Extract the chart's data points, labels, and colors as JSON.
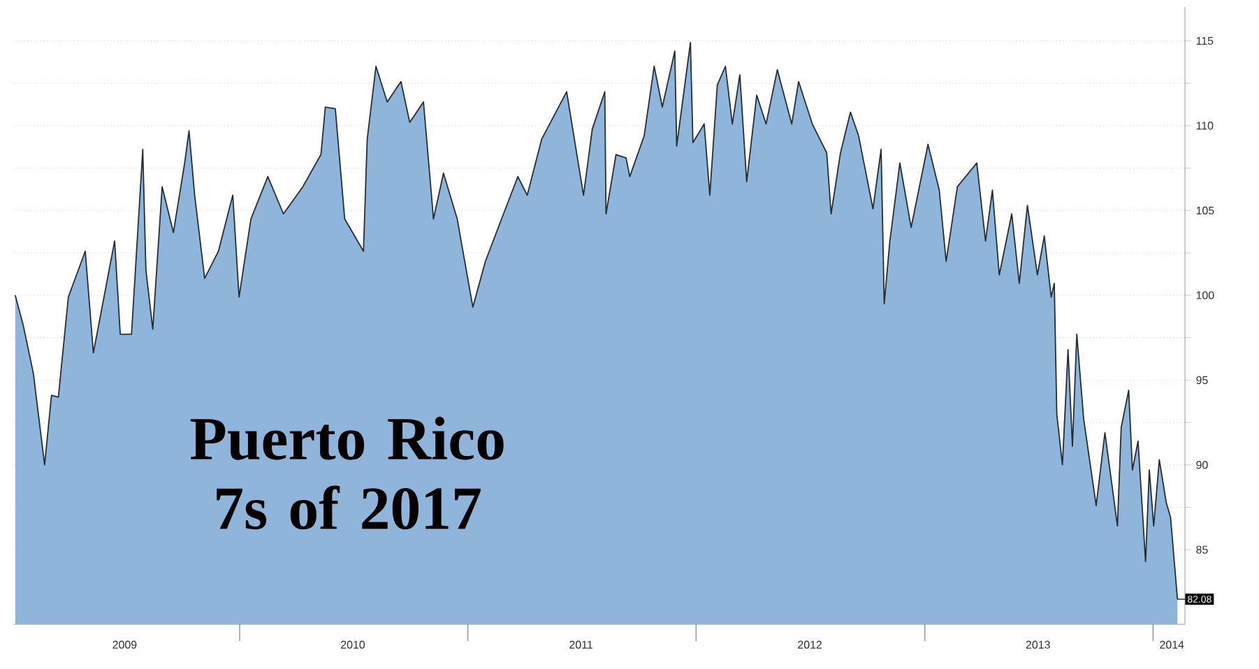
{
  "chart_data": {
    "type": "area",
    "title": "Puerto Rico 7s of 2017",
    "x": [
      "2009-01-07",
      "2009-01-20",
      "2009-02-05",
      "2009-02-23",
      "2009-03-06",
      "2009-03-17",
      "2009-04-02",
      "2009-04-29",
      "2009-05-12",
      "2009-06-15",
      "2009-06-24",
      "2009-07-12",
      "2009-07-30",
      "2009-08-04",
      "2009-08-15",
      "2009-08-30",
      "2009-09-17",
      "2009-10-05",
      "2009-10-12",
      "2009-10-21",
      "2009-11-06",
      "2009-11-28",
      "2009-12-21",
      "2009-12-31",
      "2010-01-19",
      "2010-02-15",
      "2010-03-12",
      "2010-04-12",
      "2010-05-11",
      "2010-05-18",
      "2010-06-03",
      "2010-06-18",
      "2010-07-18",
      "2010-07-24",
      "2010-08-07",
      "2010-08-25",
      "2010-09-16",
      "2010-09-30",
      "2010-10-22",
      "2010-11-07",
      "2010-11-23",
      "2010-12-15",
      "2011-01-09",
      "2011-01-29",
      "2011-02-27",
      "2011-03-22",
      "2011-04-06",
      "2011-04-29",
      "2011-06-08",
      "2011-07-05",
      "2011-07-19",
      "2011-08-08",
      "2011-08-10",
      "2011-08-26",
      "2011-09-11",
      "2011-09-17",
      "2011-10-10",
      "2011-10-26",
      "2011-11-08",
      "2011-11-28",
      "2011-12-01",
      "2011-12-23",
      "2011-12-27",
      "2012-01-14",
      "2012-01-23",
      "2012-02-04",
      "2012-02-17",
      "2012-02-28",
      "2012-03-11",
      "2012-03-22",
      "2012-04-07",
      "2012-04-22",
      "2012-05-10",
      "2012-06-02",
      "2012-06-13",
      "2012-07-05",
      "2012-07-28",
      "2012-08-04",
      "2012-08-19",
      "2012-09-04",
      "2012-09-17",
      "2012-10-10",
      "2012-10-23",
      "2012-10-28",
      "2012-11-06",
      "2012-11-22",
      "2012-12-10",
      "2013-01-06",
      "2013-01-24",
      "2013-02-04",
      "2013-02-22",
      "2013-03-25",
      "2013-04-08",
      "2013-04-19",
      "2013-04-30",
      "2013-05-20",
      "2013-06-01",
      "2013-06-14",
      "2013-06-30",
      "2013-07-11",
      "2013-07-22",
      "2013-07-27",
      "2013-07-31",
      "2013-08-09",
      "2013-08-18",
      "2013-08-25",
      "2013-09-01",
      "2013-09-12",
      "2013-10-02",
      "2013-10-16",
      "2013-11-05",
      "2013-11-11",
      "2013-11-23",
      "2013-11-29",
      "2013-12-08",
      "2013-12-20",
      "2013-12-26",
      "2014-01-02",
      "2014-01-11",
      "2014-01-22",
      "2014-01-29",
      "2014-02-09"
    ],
    "values": [
      100,
      98.2,
      95.4,
      90,
      94.1,
      94,
      99.9,
      102.6,
      96.6,
      103.2,
      97.7,
      97.7,
      108.6,
      101.5,
      98,
      106.4,
      103.7,
      107.8,
      109.7,
      105.9,
      101,
      102.6,
      105.9,
      99.9,
      104.5,
      107,
      104.8,
      106.4,
      108.3,
      111.1,
      111,
      104.5,
      102.6,
      109.2,
      113.5,
      111.4,
      112.6,
      110.2,
      111.4,
      104.5,
      107.2,
      104.5,
      99.3,
      102,
      104.8,
      107,
      105.9,
      109.2,
      112,
      105.9,
      109.8,
      112,
      104.8,
      108.3,
      108.1,
      107,
      109.4,
      113.5,
      111.1,
      114.4,
      108.8,
      114.9,
      109,
      110.1,
      105.9,
      112.4,
      113.5,
      110.1,
      113,
      106.7,
      111.8,
      110.1,
      113.3,
      110.1,
      112.6,
      110.1,
      108.4,
      104.8,
      108.4,
      110.8,
      109.4,
      105.1,
      108.6,
      99.5,
      103.2,
      107.8,
      104,
      108.9,
      106.2,
      102,
      106.4,
      107.8,
      103.2,
      106.2,
      101.2,
      104.8,
      100.7,
      105.3,
      101.2,
      103.5,
      99.9,
      100.7,
      93,
      90,
      96.8,
      91.1,
      97.7,
      92.7,
      87.6,
      91.9,
      86.4,
      92.2,
      94.4,
      89.7,
      91.4,
      84.3,
      89.7,
      86.4,
      90.3,
      87.8,
      86.9,
      82.08
    ],
    "color": "#8fb6da",
    "xlim": [
      "2009-01-05",
      "2014-02-21"
    ],
    "xticks": [
      {
        "value": "2009-07-01",
        "label": "2009"
      },
      {
        "value": "2010-01-01",
        "label": null
      },
      {
        "value": "2010-07-01",
        "label": "2010"
      },
      {
        "value": "2011-01-01",
        "label": null
      },
      {
        "value": "2011-07-01",
        "label": "2011"
      },
      {
        "value": "2012-01-01",
        "label": null
      },
      {
        "value": "2012-07-01",
        "label": "2012"
      },
      {
        "value": "2013-01-01",
        "label": null
      },
      {
        "value": "2013-07-01",
        "label": "2013"
      },
      {
        "value": "2014-01-01",
        "label": null
      },
      {
        "value": "2014-01-31",
        "label": "2014"
      }
    ],
    "ylim": [
      80.6,
      117
    ],
    "yticks": [
      85,
      {
        "value": 87.5,
        "label": null
      },
      90,
      {
        "value": 92.5,
        "label": null
      },
      95,
      {
        "value": 97.5,
        "label": null
      },
      100,
      {
        "value": 102.5,
        "label": null
      },
      105,
      {
        "value": 107.5,
        "label": null
      },
      110,
      {
        "value": 112.5,
        "label": null
      },
      115
    ],
    "grid": "y",
    "annotations": [
      {
        "text": "82.08",
        "x": "2014-02-09",
        "y": 82.08
      }
    ]
  }
}
